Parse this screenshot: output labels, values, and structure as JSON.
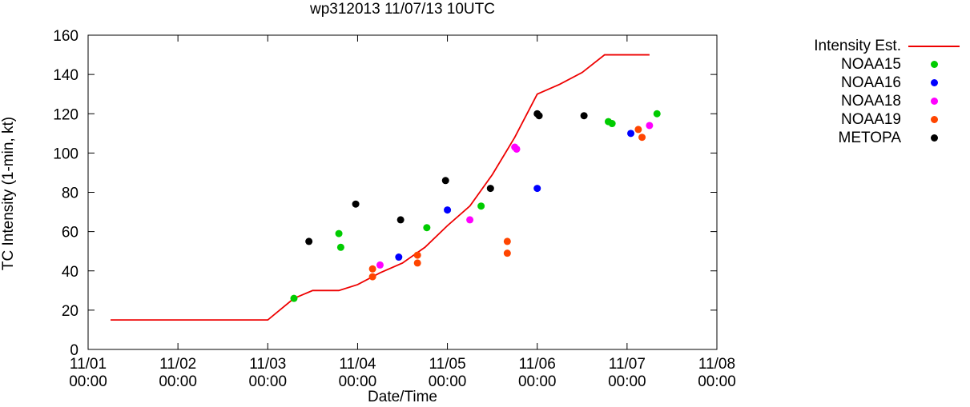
{
  "page": {
    "background": "#ffffff"
  },
  "chart_data": {
    "type": "line+scatter",
    "title": "wp312013 11/07/13 10UTC",
    "xlabel": "Date/Time",
    "ylabel": "TC Intensity (1-min, kt)",
    "ylim": [
      0,
      160
    ],
    "y_ticks": [
      0,
      20,
      40,
      60,
      80,
      100,
      120,
      140,
      160
    ],
    "x_range_days": 7,
    "x_ticks": [
      {
        "date": "11/01",
        "time": "00:00"
      },
      {
        "date": "11/02",
        "time": "00:00"
      },
      {
        "date": "11/03",
        "time": "00:00"
      },
      {
        "date": "11/04",
        "time": "00:00"
      },
      {
        "date": "11/05",
        "time": "00:00"
      },
      {
        "date": "11/06",
        "time": "00:00"
      },
      {
        "date": "11/07",
        "time": "00:00"
      },
      {
        "date": "11/08",
        "time": "00:00"
      }
    ],
    "grid": false,
    "legend_position": "right-outside",
    "axis_color": "#000000",
    "line_series": {
      "name": "Intensity Est.",
      "color": "#ee0000",
      "points": [
        [
          "11/01 06:00",
          15
        ],
        [
          "11/03 00:00",
          15
        ],
        [
          "11/03 07:00",
          26
        ],
        [
          "11/03 12:00",
          30
        ],
        [
          "11/03 19:00",
          30
        ],
        [
          "11/04 00:00",
          33
        ],
        [
          "11/04 06:00",
          39
        ],
        [
          "11/04 12:00",
          44
        ],
        [
          "11/04 18:00",
          52
        ],
        [
          "11/05 00:00",
          63
        ],
        [
          "11/05 06:00",
          73
        ],
        [
          "11/05 12:00",
          89
        ],
        [
          "11/05 18:00",
          108
        ],
        [
          "11/06 00:00",
          130
        ],
        [
          "11/06 06:00",
          135
        ],
        [
          "11/06 12:00",
          141
        ],
        [
          "11/06 18:00",
          150
        ],
        [
          "11/07 06:00",
          150
        ]
      ]
    },
    "scatter_series": [
      {
        "name": "NOAA15",
        "color": "#00cc00",
        "points": [
          [
            "11/03 07:00",
            26
          ],
          [
            "11/03 19:00",
            59
          ],
          [
            "11/03 19:30",
            52
          ],
          [
            "11/04 18:30",
            62
          ],
          [
            "11/05 09:00",
            73
          ],
          [
            "11/06 19:00",
            116
          ],
          [
            "11/06 20:00",
            115
          ],
          [
            "11/07 08:00",
            120
          ]
        ]
      },
      {
        "name": "NOAA16",
        "color": "#0000ff",
        "points": [
          [
            "11/04 11:00",
            47
          ],
          [
            "11/05 00:00",
            71
          ],
          [
            "11/06 00:00",
            82
          ],
          [
            "11/07 01:00",
            110
          ]
        ]
      },
      {
        "name": "NOAA18",
        "color": "#ff00ff",
        "points": [
          [
            "11/04 06:00",
            43
          ],
          [
            "11/05 06:00",
            66
          ],
          [
            "11/05 18:00",
            103
          ],
          [
            "11/05 18:30",
            102
          ],
          [
            "11/07 06:00",
            114
          ]
        ]
      },
      {
        "name": "NOAA19",
        "color": "#ff4500",
        "points": [
          [
            "11/04 04:00",
            41
          ],
          [
            "11/04 04:00",
            37
          ],
          [
            "11/04 16:00",
            48
          ],
          [
            "11/04 16:00",
            44
          ],
          [
            "11/05 16:00",
            55
          ],
          [
            "11/05 16:00",
            49
          ],
          [
            "11/07 03:00",
            112
          ],
          [
            "11/07 04:00",
            108
          ]
        ]
      },
      {
        "name": "METOPA",
        "color": "#000000",
        "points": [
          [
            "11/03 11:00",
            55
          ],
          [
            "11/03 23:30",
            74
          ],
          [
            "11/04 11:30",
            66
          ],
          [
            "11/04 23:30",
            86
          ],
          [
            "11/05 11:30",
            82
          ],
          [
            "11/06 00:00",
            120
          ],
          [
            "11/06 00:30",
            119
          ],
          [
            "11/06 12:30",
            119
          ]
        ]
      }
    ]
  }
}
